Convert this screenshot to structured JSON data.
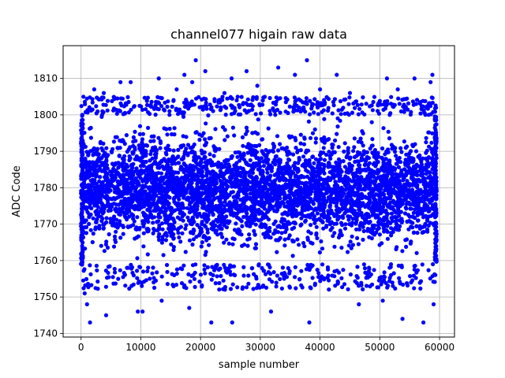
{
  "chart_data": {
    "type": "scatter",
    "title": "channel077 higain raw data",
    "xlabel": "sample number",
    "ylabel": "ADC Code",
    "xlim": [
      -3000,
      62500
    ],
    "ylim": [
      1739,
      1819
    ],
    "xticks": [
      0,
      10000,
      20000,
      30000,
      40000,
      50000,
      60000
    ],
    "xtick_labels": [
      "0",
      "10000",
      "20000",
      "30000",
      "40000",
      "50000",
      "60000"
    ],
    "yticks": [
      1740,
      1750,
      1760,
      1770,
      1780,
      1790,
      1800,
      1810
    ],
    "ytick_labels": [
      "1740",
      "1750",
      "1760",
      "1770",
      "1780",
      "1790",
      "1800",
      "1810"
    ],
    "grid": true,
    "marker_color": "#0000ff",
    "series": [
      {
        "x_range": [
          0,
          59500
        ],
        "core_y_range": [
          1759,
          1800
        ],
        "outliers": [
          {
            "x": 1500,
            "y": 1743
          },
          {
            "x": 4200,
            "y": 1745
          },
          {
            "x": 9500,
            "y": 1746
          },
          {
            "x": 10300,
            "y": 1746
          },
          {
            "x": 21800,
            "y": 1743
          },
          {
            "x": 25300,
            "y": 1743
          },
          {
            "x": 31800,
            "y": 1746
          },
          {
            "x": 38200,
            "y": 1743
          },
          {
            "x": 53800,
            "y": 1744
          },
          {
            "x": 57300,
            "y": 1743
          },
          {
            "x": 59000,
            "y": 1748
          },
          {
            "x": 600,
            "y": 1751
          },
          {
            "x": 1000,
            "y": 1748
          },
          {
            "x": 13500,
            "y": 1749
          },
          {
            "x": 18100,
            "y": 1747
          },
          {
            "x": 46500,
            "y": 1748
          },
          {
            "x": 50500,
            "y": 1749
          },
          {
            "x": 19200,
            "y": 1815
          },
          {
            "x": 20800,
            "y": 1812
          },
          {
            "x": 27700,
            "y": 1812
          },
          {
            "x": 33000,
            "y": 1813
          },
          {
            "x": 35800,
            "y": 1811
          },
          {
            "x": 37800,
            "y": 1815
          },
          {
            "x": 42800,
            "y": 1811
          },
          {
            "x": 51200,
            "y": 1810
          },
          {
            "x": 58800,
            "y": 1811
          },
          {
            "x": 58500,
            "y": 1809
          },
          {
            "x": 55800,
            "y": 1810
          },
          {
            "x": 25200,
            "y": 1810
          },
          {
            "x": 6600,
            "y": 1809
          },
          {
            "x": 8300,
            "y": 1809
          },
          {
            "x": 13000,
            "y": 1810
          },
          {
            "x": 17300,
            "y": 1811
          },
          {
            "x": 18600,
            "y": 1809
          },
          {
            "x": 29500,
            "y": 1808
          },
          {
            "x": 400,
            "y": 1805
          },
          {
            "x": 2200,
            "y": 1807
          },
          {
            "x": 3800,
            "y": 1806
          },
          {
            "x": 16000,
            "y": 1807
          },
          {
            "x": 24000,
            "y": 1806
          },
          {
            "x": 40000,
            "y": 1807
          },
          {
            "x": 45000,
            "y": 1806
          },
          {
            "x": 53000,
            "y": 1807
          }
        ]
      }
    ]
  }
}
